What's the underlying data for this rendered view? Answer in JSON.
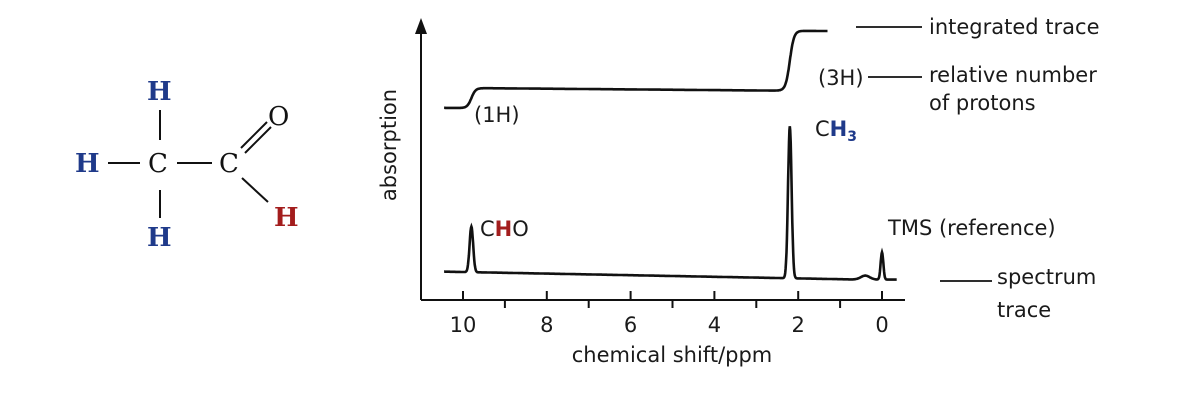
{
  "molecule": {
    "atoms": {
      "h_top": "H",
      "h_left": "H",
      "h_bottom": "H",
      "c_methyl": "C",
      "c_carbonyl": "C",
      "o": "O",
      "h_aldehyde": "H"
    },
    "colors": {
      "methyl_h": "#1f3a8a",
      "aldehyde_h": "#a31d1d",
      "other": "#111111"
    }
  },
  "chart_data": {
    "type": "line",
    "xlabel": "chemical shift/ppm",
    "ylabel": "absorption",
    "xlim": [
      10.5,
      -0.5
    ],
    "x_reversed": true,
    "ticks": [
      "10",
      "8",
      "6",
      "4",
      "2",
      "0"
    ],
    "tick_values": [
      10,
      8,
      6,
      4,
      2,
      0
    ],
    "minor_ticks": [
      9,
      7,
      5,
      3,
      1
    ],
    "grid": false,
    "spectrum_trace": {
      "name": "spectrum trace",
      "peaks": [
        {
          "shift": 9.8,
          "relative_height": 0.3,
          "label_parts": [
            "C",
            "H",
            "O"
          ]
        },
        {
          "shift": 2.2,
          "relative_height": 1.0,
          "label_parts": [
            "C",
            "H",
            "3"
          ]
        },
        {
          "shift": 0.0,
          "relative_height": 0.18,
          "label": "TMS (reference)"
        }
      ]
    },
    "integrated_trace": {
      "name": "integrated trace",
      "steps": [
        {
          "shift": 9.8,
          "protons": 1,
          "label": "(1H)"
        },
        {
          "shift": 2.2,
          "protons": 3,
          "label": "(3H)"
        }
      ]
    },
    "annotations": {
      "integrated_trace": "integrated trace",
      "relative_number_1": "relative number",
      "relative_number_2": "of protons",
      "spectrum_1": "spectrum",
      "spectrum_2": "trace"
    },
    "highlight_colors": {
      "aldehyde_h": "#a31d1d",
      "methyl_h": "#1f3a8a"
    }
  }
}
